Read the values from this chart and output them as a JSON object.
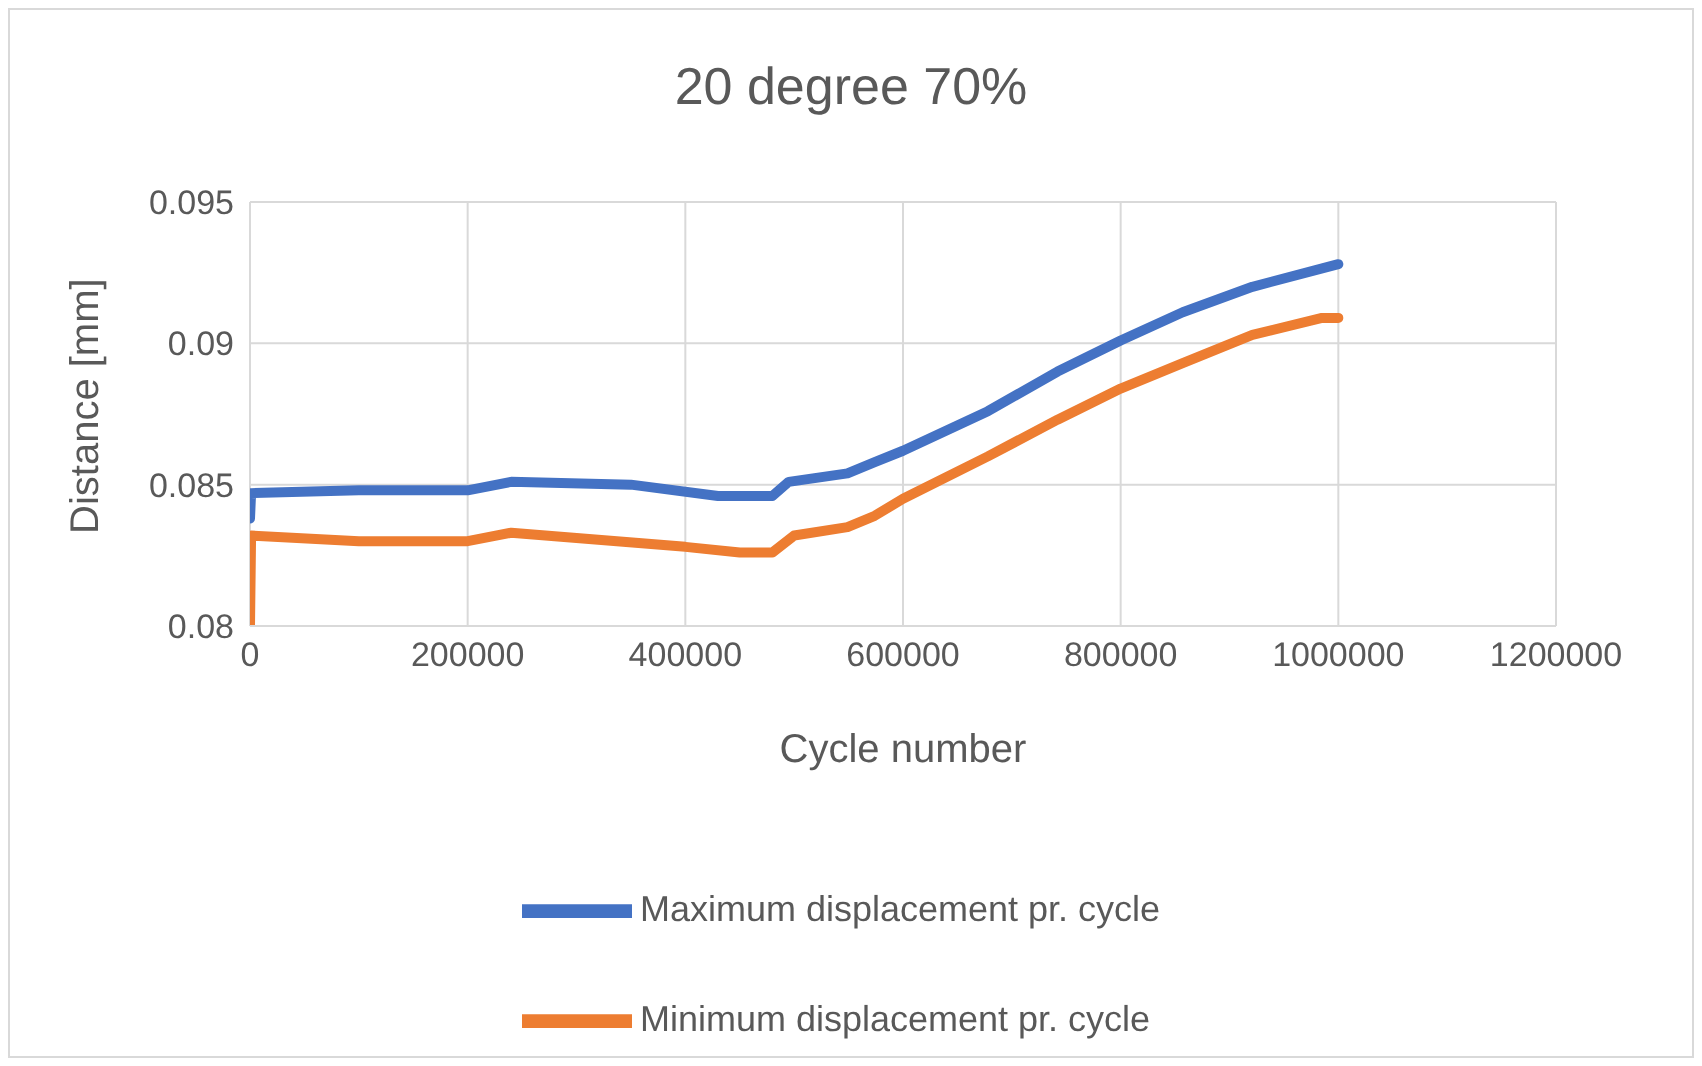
{
  "chart_data": {
    "type": "line",
    "title": "20 degree 70%",
    "xlabel": "Cycle number",
    "ylabel": "Distance [mm]",
    "xlim": [
      0,
      1200000
    ],
    "xticks": [
      0,
      200000,
      400000,
      600000,
      800000,
      1000000,
      1200000
    ],
    "ylim": [
      0.08,
      0.095
    ],
    "yticks": [
      0.08,
      0.085,
      0.09,
      0.095
    ],
    "grid": true,
    "legend": "bottom",
    "marker": "none",
    "line_style": "solid",
    "series": [
      {
        "name": "Maximum displacement pr. cycle",
        "color": "#4472c4",
        "x": [
          0,
          1000,
          100000,
          200000,
          240000,
          350000,
          430000,
          480000,
          495000,
          549000,
          574000,
          600000,
          678000,
          742000,
          800000,
          857000,
          921000,
          1000000
        ],
        "values": [
          0.0838,
          0.0847,
          0.0848,
          0.0848,
          0.0851,
          0.085,
          0.0846,
          0.0846,
          0.0851,
          0.0854,
          0.0858,
          0.0862,
          0.0876,
          0.089,
          0.0901,
          0.0911,
          0.092,
          0.0928
        ]
      },
      {
        "name": "Minimum displacement pr. cycle",
        "color": "#ed7d31",
        "x": [
          0,
          1000,
          100000,
          200000,
          240000,
          400000,
          450000,
          480000,
          500000,
          549000,
          574000,
          600000,
          678000,
          742000,
          800000,
          857000,
          921000,
          985000,
          1000000
        ],
        "values": [
          0.08,
          0.0832,
          0.083,
          0.083,
          0.0833,
          0.0828,
          0.0826,
          0.0826,
          0.0832,
          0.0835,
          0.0839,
          0.0845,
          0.086,
          0.0873,
          0.0884,
          0.0893,
          0.0903,
          0.0909,
          0.0909
        ]
      }
    ]
  }
}
